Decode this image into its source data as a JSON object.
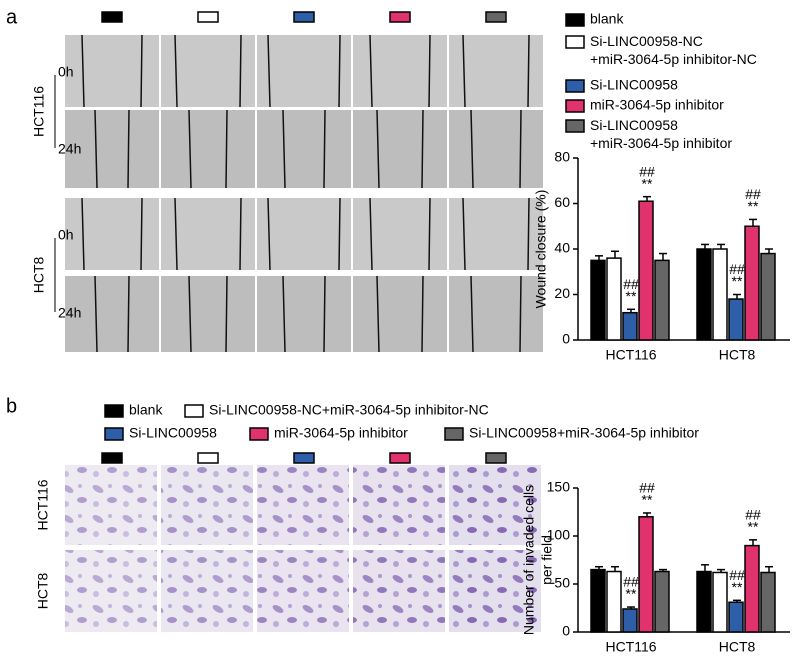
{
  "panels": {
    "a": {
      "label": "a",
      "rows": [
        {
          "name": "HCT116",
          "times": [
            "0h",
            "24h"
          ]
        },
        {
          "name": "HCT8",
          "times": [
            "0h",
            "24h"
          ]
        }
      ]
    },
    "b": {
      "label": "b",
      "rows": [
        "HCT116",
        "HCT8"
      ]
    }
  },
  "chart_data": [
    {
      "type": "bar",
      "ylabel": "Wound closure (%)",
      "categories": [
        "HCT116",
        "HCT8"
      ],
      "ylim": [
        0,
        80
      ],
      "yticks": [
        0,
        20,
        40,
        60,
        80
      ],
      "series": [
        {
          "name": "blank",
          "color": "#000000",
          "values": [
            35,
            40
          ],
          "errors": [
            2,
            2
          ]
        },
        {
          "name": "Si-LINC00958-NC\n+miR-3064-5p inhibitor-NC",
          "color": "#ffffff",
          "values": [
            36,
            40
          ],
          "errors": [
            3,
            2
          ]
        },
        {
          "name": "Si-LINC00958",
          "color": "#2f5ea8",
          "values": [
            12,
            18
          ],
          "errors": [
            1.5,
            2
          ],
          "annotations": [
            [
              "##",
              "**"
            ],
            [
              "##",
              "**"
            ]
          ]
        },
        {
          "name": "miR-3064-5p inhibitor",
          "color": "#e0336e",
          "values": [
            61,
            50
          ],
          "errors": [
            2,
            3
          ],
          "annotations": [
            [
              "##",
              "**"
            ],
            [
              "##",
              "**"
            ]
          ]
        },
        {
          "name": "Si-LINC00958\n+miR-3064-5p inhibitor",
          "color": "#666666",
          "values": [
            35,
            38
          ],
          "errors": [
            3,
            2
          ]
        }
      ]
    },
    {
      "type": "bar",
      "ylabel": [
        "Number of invaded cells",
        "per field"
      ],
      "categories": [
        "HCT116",
        "HCT8"
      ],
      "ylim": [
        0,
        150
      ],
      "yticks": [
        0,
        50,
        100,
        150
      ],
      "series": [
        {
          "name": "blank",
          "color": "#000000",
          "values": [
            65,
            63
          ],
          "errors": [
            3,
            7
          ]
        },
        {
          "name": "Si-LINC00958-NC+miR-3064-5p inhibitor-NC",
          "color": "#ffffff",
          "values": [
            63,
            62
          ],
          "errors": [
            5,
            3
          ]
        },
        {
          "name": "Si-LINC00958",
          "color": "#2f5ea8",
          "values": [
            24,
            31
          ],
          "errors": [
            2,
            2
          ],
          "annotations": [
            [
              "##",
              "**"
            ],
            [
              "##",
              "**"
            ]
          ]
        },
        {
          "name": "miR-3064-5p inhibitor",
          "color": "#e0336e",
          "values": [
            120,
            90
          ],
          "errors": [
            4,
            6
          ],
          "annotations": [
            [
              "##",
              "**"
            ],
            [
              "##",
              "**"
            ]
          ]
        },
        {
          "name": "Si-LINC00958+miR-3064-5p inhibitor",
          "color": "#666666",
          "values": [
            63,
            62
          ],
          "errors": [
            2,
            6
          ]
        }
      ]
    }
  ]
}
